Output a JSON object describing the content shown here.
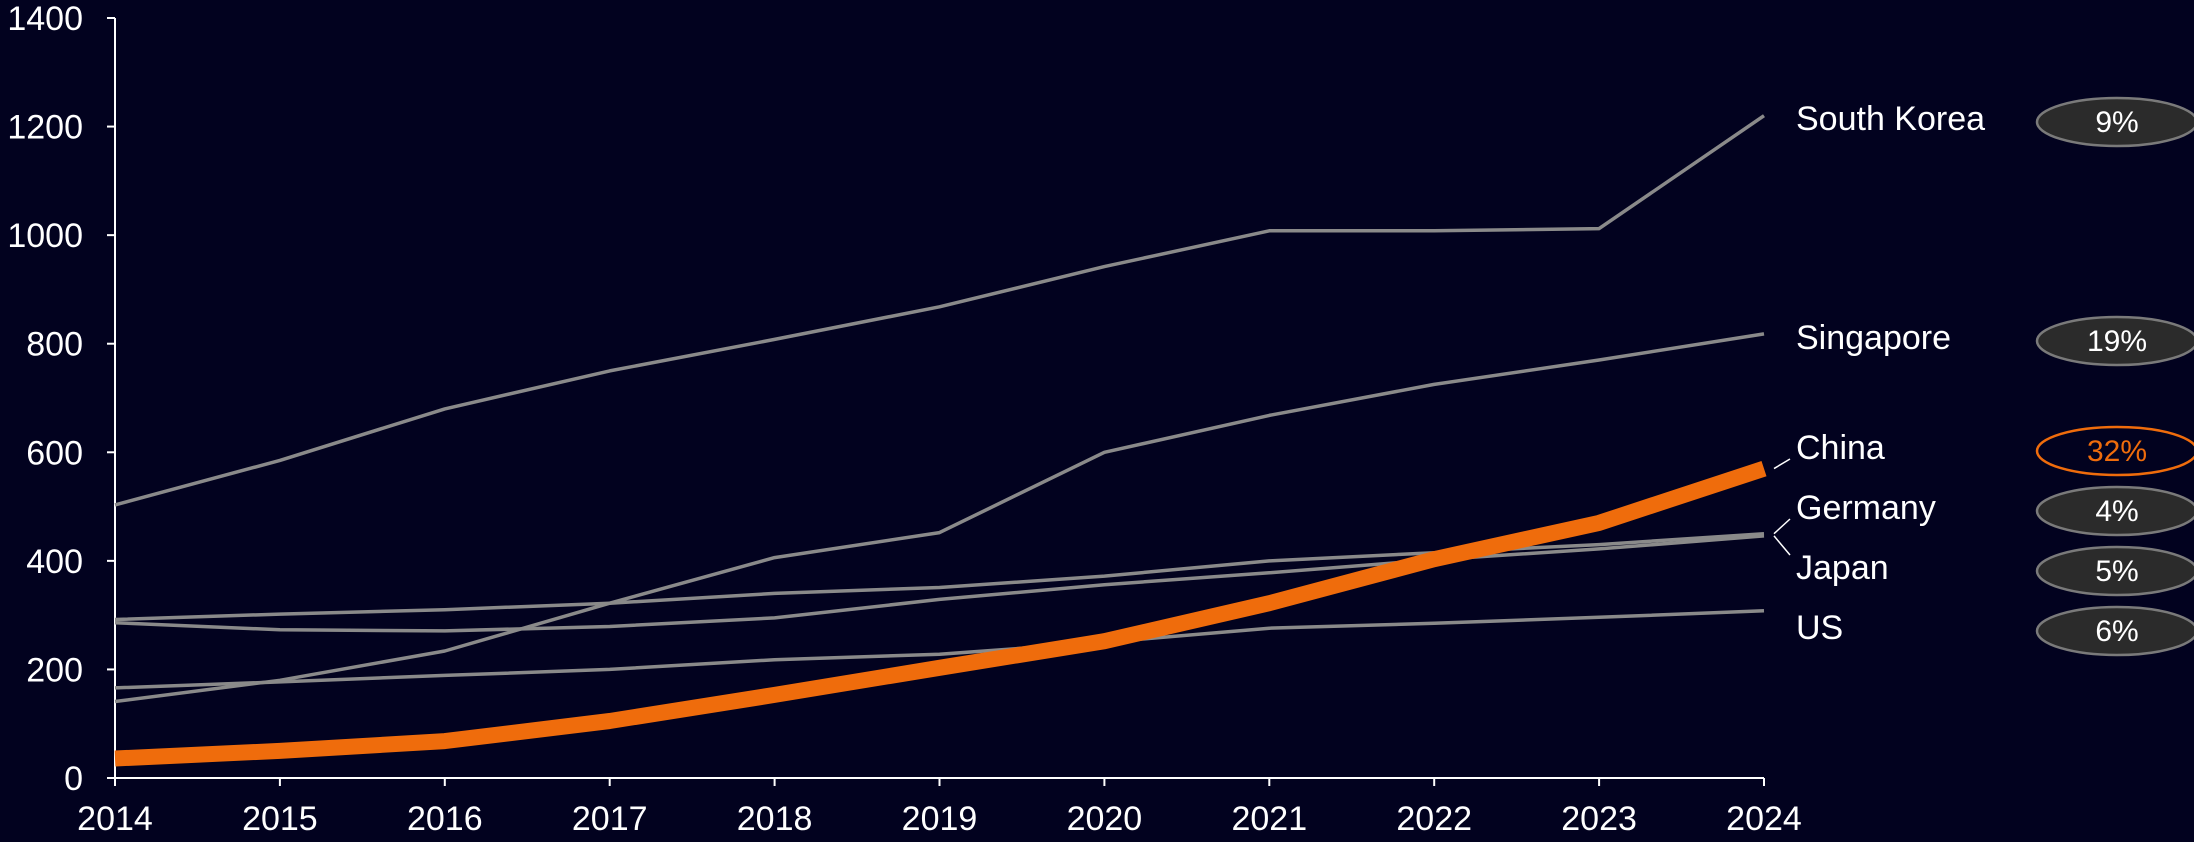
{
  "chart_data": {
    "type": "line",
    "title": "",
    "xlabel": "",
    "ylabel": "",
    "x": [
      "2014",
      "2015",
      "2016",
      "2017",
      "2018",
      "2019",
      "2020",
      "2021",
      "2022",
      "2023",
      "2024"
    ],
    "ylim": [
      0,
      1400
    ],
    "yticks": [
      "0",
      "200",
      "400",
      "600",
      "800",
      "1000",
      "1200",
      "1400"
    ],
    "grid": false,
    "legend": "direct-labels-right",
    "series": [
      {
        "name": "South Korea",
        "badge": "9%",
        "highlight": false,
        "values": [
          503,
          585,
          680,
          750,
          808,
          868,
          942,
          1008,
          1008,
          1012,
          1220
        ]
      },
      {
        "name": "Singapore",
        "badge": "19%",
        "highlight": false,
        "values": [
          141,
          180,
          234,
          322,
          406,
          452,
          600,
          668,
          725,
          770,
          818
        ]
      },
      {
        "name": "China",
        "badge": "32%",
        "highlight": true,
        "values": [
          36,
          50,
          68,
          105,
          153,
          203,
          252,
          322,
          403,
          470,
          570
        ]
      },
      {
        "name": "Germany",
        "badge": "4%",
        "highlight": false,
        "values": [
          292,
          302,
          310,
          322,
          340,
          351,
          372,
          400,
          415,
          430,
          450
        ]
      },
      {
        "name": "Japan",
        "badge": "5%",
        "highlight": false,
        "values": [
          286,
          273,
          271,
          279,
          295,
          329,
          356,
          378,
          402,
          422,
          446
        ]
      },
      {
        "name": "US",
        "badge": "6%",
        "highlight": false,
        "values": [
          166,
          177,
          189,
          200,
          218,
          228,
          250,
          276,
          285,
          296,
          308
        ]
      }
    ],
    "colors": {
      "background": "#02021f",
      "axis": "#ffffff",
      "line": "#8a8a8a",
      "highlight": "#ef6c0c",
      "badge_fill": "#2b2b2b",
      "badge_stroke": "#7a7a7a",
      "text": "#ffffff"
    }
  }
}
